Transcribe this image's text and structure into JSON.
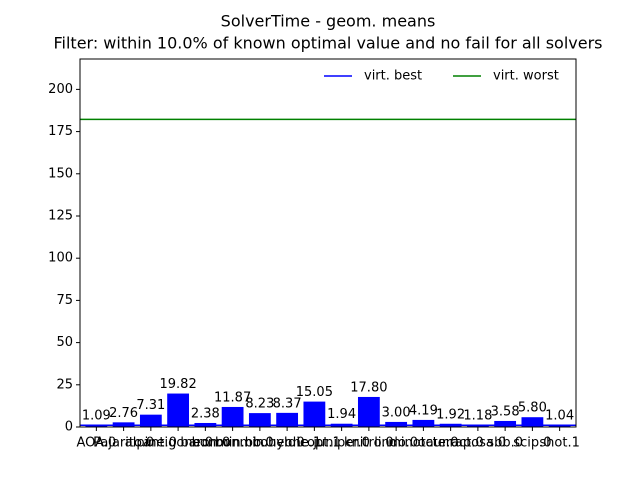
{
  "chart_data": {
    "type": "bar",
    "title": "SolverTime - geom. means",
    "subtitle": "Filter: within 10.0% of known optimal value and no fail for all solvers",
    "categories": [
      "AOA.0",
      "Pajarito.0",
      "alpine.0",
      "antigone.0",
      "baron.0",
      "bonmin.bb.0",
      "bonmin.hyb.0",
      "couenne.1",
      "dicopt.1",
      "juniper.0",
      "knitro.0",
      "lindo.0",
      "minotaur.0",
      "octeract.0",
      "raposa.0",
      "sbb.0",
      "scip.0",
      "shot.1"
    ],
    "values": [
      1.09,
      2.76,
      7.31,
      19.82,
      2.38,
      11.87,
      8.23,
      8.37,
      15.05,
      1.94,
      17.8,
      3.0,
      4.19,
      1.92,
      1.18,
      3.58,
      5.8,
      1.04
    ],
    "value_labels": [
      "1.09",
      "2.76",
      "7.31",
      "19.82",
      "2.38",
      "11.87",
      "8.23",
      "8.37",
      "15.05",
      "1.94",
      "17.80",
      "3.00",
      "4.19",
      "1.92",
      "1.18",
      "3.58",
      "5.80",
      "1.04"
    ],
    "color": "#0000ff",
    "lines": [
      {
        "name": "virt. best",
        "color": "#0000ff",
        "value": 1.0
      },
      {
        "name": "virt. worst",
        "color": "#008000",
        "value": 182.2
      }
    ],
    "ylim": [
      0,
      218
    ],
    "yticks": [
      0,
      25,
      50,
      75,
      100,
      125,
      150,
      175,
      200
    ],
    "legend": "upper right"
  }
}
